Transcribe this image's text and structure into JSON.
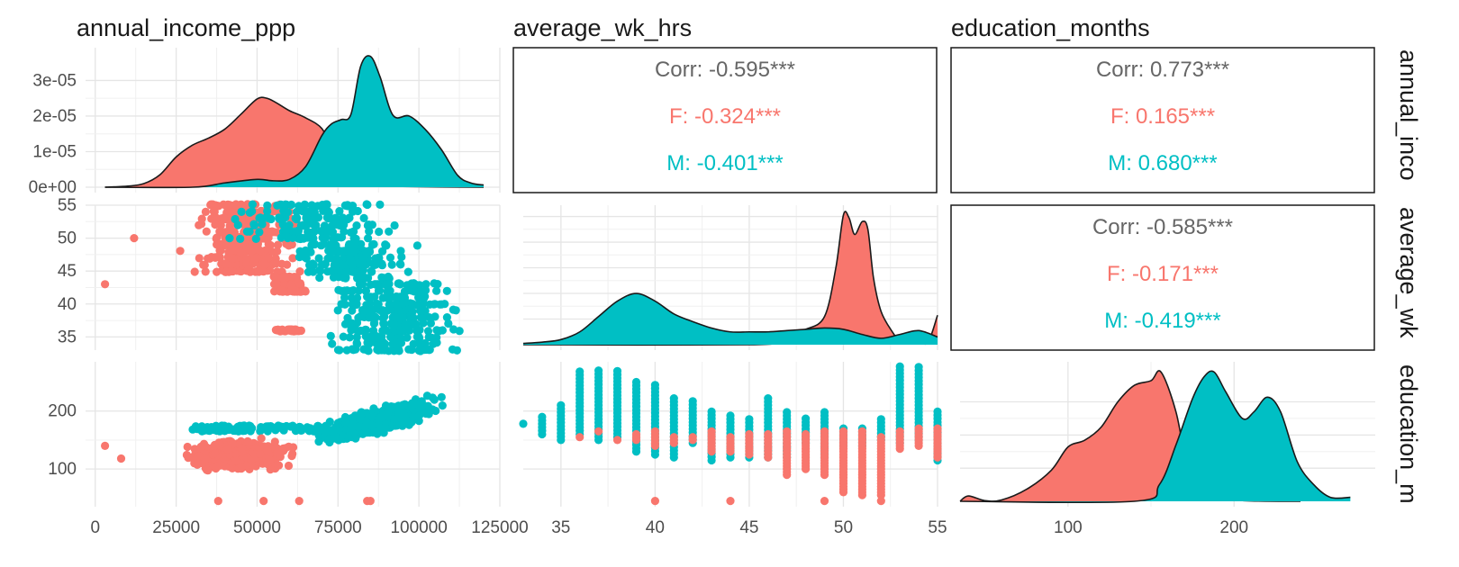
{
  "chart_data": {
    "type": "scatter",
    "kind": "pairs_matrix",
    "variables": [
      "annual_income_ppp",
      "average_wk_hrs",
      "education_months"
    ],
    "strip_labels": [
      "annual_inco",
      "average_wk",
      "education_m"
    ],
    "groups": [
      {
        "name": "F",
        "color": "#F8766D"
      },
      {
        "name": "M",
        "color": "#00BFC4"
      }
    ],
    "correlations": [
      {
        "pair": [
          "annual_income_ppp",
          "average_wk_hrs"
        ],
        "corr": "Corr: -0.595***",
        "F": "F: -0.324***",
        "M": "M: -0.401***"
      },
      {
        "pair": [
          "annual_income_ppp",
          "education_months"
        ],
        "corr": "Corr: 0.773***",
        "F": "F: 0.165***",
        "M": "M: 0.680***"
      },
      {
        "pair": [
          "average_wk_hrs",
          "education_months"
        ],
        "corr": "Corr: -0.585***",
        "F": "F: -0.171***",
        "M": "M: -0.419***"
      }
    ],
    "axes": {
      "annual_income_ppp": {
        "range": [
          -3000,
          125000
        ],
        "ticks": [
          0,
          25000,
          50000,
          75000,
          100000,
          125000
        ],
        "tick_labels": [
          "0",
          "25000",
          "50000",
          "75000",
          "100000",
          "125000"
        ]
      },
      "average_wk_hrs": {
        "range": [
          33,
          55
        ],
        "ticks": [
          35,
          40,
          45,
          50,
          55
        ],
        "tick_labels": [
          "35",
          "40",
          "45",
          "50",
          "55"
        ]
      },
      "education_months": {
        "range": [
          35,
          285
        ],
        "ticks": [
          100,
          200
        ],
        "tick_labels": [
          "100",
          "200"
        ]
      }
    },
    "density_axis": {
      "range": [
        0,
        3.82e-05
      ],
      "ticks": [
        0,
        1e-05,
        2e-05,
        3e-05
      ],
      "tick_labels": [
        "0e+00",
        "1e-05",
        "2e-05",
        "3e-05"
      ]
    },
    "densities": {
      "annual_income_ppp": {
        "F": [
          [
            3000,
            0
          ],
          [
            10000,
            3e-07
          ],
          [
            15000,
            1e-06
          ],
          [
            20000,
            3.5e-06
          ],
          [
            25000,
            8.5e-06
          ],
          [
            30000,
            1.18e-05
          ],
          [
            35000,
            1.38e-05
          ],
          [
            40000,
            1.63e-05
          ],
          [
            45000,
            2.05e-05
          ],
          [
            50000,
            2.48e-05
          ],
          [
            53000,
            2.5e-05
          ],
          [
            56000,
            2.37e-05
          ],
          [
            60000,
            2.15e-05
          ],
          [
            65000,
            1.95e-05
          ],
          [
            70000,
            1.65e-05
          ],
          [
            73000,
            1.08e-05
          ],
          [
            76000,
            5e-06
          ],
          [
            80000,
            1.5e-06
          ],
          [
            85000,
            5e-07
          ],
          [
            95000,
            2e-07
          ],
          [
            120000,
            0
          ]
        ],
        "M": [
          [
            3000,
            0
          ],
          [
            30000,
            0
          ],
          [
            40000,
            1.2e-06
          ],
          [
            50000,
            2.2e-06
          ],
          [
            55000,
            1.8e-06
          ],
          [
            60000,
            2.2e-06
          ],
          [
            65000,
            5.8e-06
          ],
          [
            70000,
            1.45e-05
          ],
          [
            73000,
            1.78e-05
          ],
          [
            76000,
            1.9e-05
          ],
          [
            79000,
            2.05e-05
          ],
          [
            82000,
            3.4e-05
          ],
          [
            85000,
            3.68e-05
          ],
          [
            88000,
            3.1e-05
          ],
          [
            92000,
            2.02e-05
          ],
          [
            97000,
            2e-05
          ],
          [
            102000,
            1.62e-05
          ],
          [
            107000,
            1.05e-05
          ],
          [
            112000,
            3.3e-06
          ],
          [
            116000,
            1.2e-06
          ],
          [
            120000,
            6e-07
          ]
        ]
      },
      "average_wk_hrs": {
        "F": [
          [
            33,
            0
          ],
          [
            45,
            0
          ],
          [
            46.5,
            0.015
          ],
          [
            47,
            0.04
          ],
          [
            48,
            0.06
          ],
          [
            49,
            0.11
          ],
          [
            49.6,
            0.3
          ],
          [
            50,
            0.505
          ],
          [
            50.3,
            0.495
          ],
          [
            50.6,
            0.43
          ],
          [
            51,
            0.48
          ],
          [
            51.3,
            0.45
          ],
          [
            51.6,
            0.26
          ],
          [
            52,
            0.13
          ],
          [
            52.6,
            0.05
          ],
          [
            53,
            0.015
          ],
          [
            53.5,
            0.005
          ],
          [
            54,
            0.01
          ],
          [
            54.5,
            0.01
          ],
          [
            55,
            0.115
          ]
        ],
        "M": [
          [
            33,
            0.005
          ],
          [
            34,
            0.01
          ],
          [
            35,
            0.02
          ],
          [
            36,
            0.05
          ],
          [
            37,
            0.11
          ],
          [
            38,
            0.17
          ],
          [
            39,
            0.2
          ],
          [
            40,
            0.17
          ],
          [
            41,
            0.12
          ],
          [
            42,
            0.09
          ],
          [
            43,
            0.065
          ],
          [
            44,
            0.05
          ],
          [
            45,
            0.05
          ],
          [
            46,
            0.05
          ],
          [
            47,
            0.055
          ],
          [
            48,
            0.06
          ],
          [
            49,
            0.065
          ],
          [
            50,
            0.06
          ],
          [
            51,
            0.04
          ],
          [
            52,
            0.025
          ],
          [
            53,
            0.04
          ],
          [
            54,
            0.055
          ],
          [
            55,
            0.03
          ]
        ]
      },
      "education_months": {
        "F": [
          [
            35,
            0
          ],
          [
            40,
            0.0008
          ],
          [
            50,
            0.0001
          ],
          [
            60,
            0.0002
          ],
          [
            75,
            0.0018
          ],
          [
            90,
            0.0047
          ],
          [
            100,
            0.0082
          ],
          [
            110,
            0.0092
          ],
          [
            120,
            0.0112
          ],
          [
            130,
            0.015
          ],
          [
            140,
            0.0175
          ],
          [
            150,
            0.0182
          ],
          [
            156,
            0.0195
          ],
          [
            165,
            0.0135
          ],
          [
            172,
            0.005
          ],
          [
            180,
            0.0015
          ],
          [
            200,
            0.0002
          ],
          [
            240,
            0
          ]
        ],
        "M": [
          [
            35,
            0
          ],
          [
            140,
            0
          ],
          [
            155,
            0.0025
          ],
          [
            165,
            0.0085
          ],
          [
            175,
            0.0155
          ],
          [
            182,
            0.0188
          ],
          [
            188,
            0.0195
          ],
          [
            195,
            0.0165
          ],
          [
            205,
            0.0125
          ],
          [
            212,
            0.0135
          ],
          [
            220,
            0.0157
          ],
          [
            228,
            0.0135
          ],
          [
            238,
            0.006
          ],
          [
            248,
            0.0025
          ],
          [
            258,
            0.0006
          ],
          [
            270,
            0.0006
          ]
        ]
      }
    },
    "scatter_summary": {
      "income_vs_hours": {
        "F": {
          "x_range": [
            3000,
            75000
          ],
          "y_range": [
            36,
            55
          ],
          "center": [
            45000,
            49
          ]
        },
        "M": {
          "x_range": [
            25000,
            120000
          ],
          "y_range": [
            33,
            55
          ],
          "center": [
            85000,
            43
          ]
        }
      },
      "income_vs_education": {
        "F": {
          "x_range": [
            3000,
            85000
          ],
          "y_range": [
            45,
            175
          ],
          "center": [
            45000,
            120
          ]
        },
        "M": {
          "x_range": [
            30000,
            120000
          ],
          "y_range": [
            45,
            280
          ],
          "center": [
            88000,
            210
          ]
        }
      },
      "hours_vs_education": {
        "F": {
          "x_range": [
            36,
            55
          ],
          "y_range": [
            45,
            175
          ],
          "center": [
            50,
            130
          ]
        },
        "M": {
          "x_range": [
            34,
            55
          ],
          "y_range": [
            110,
            280
          ],
          "center": [
            42,
            200
          ]
        }
      }
    }
  }
}
